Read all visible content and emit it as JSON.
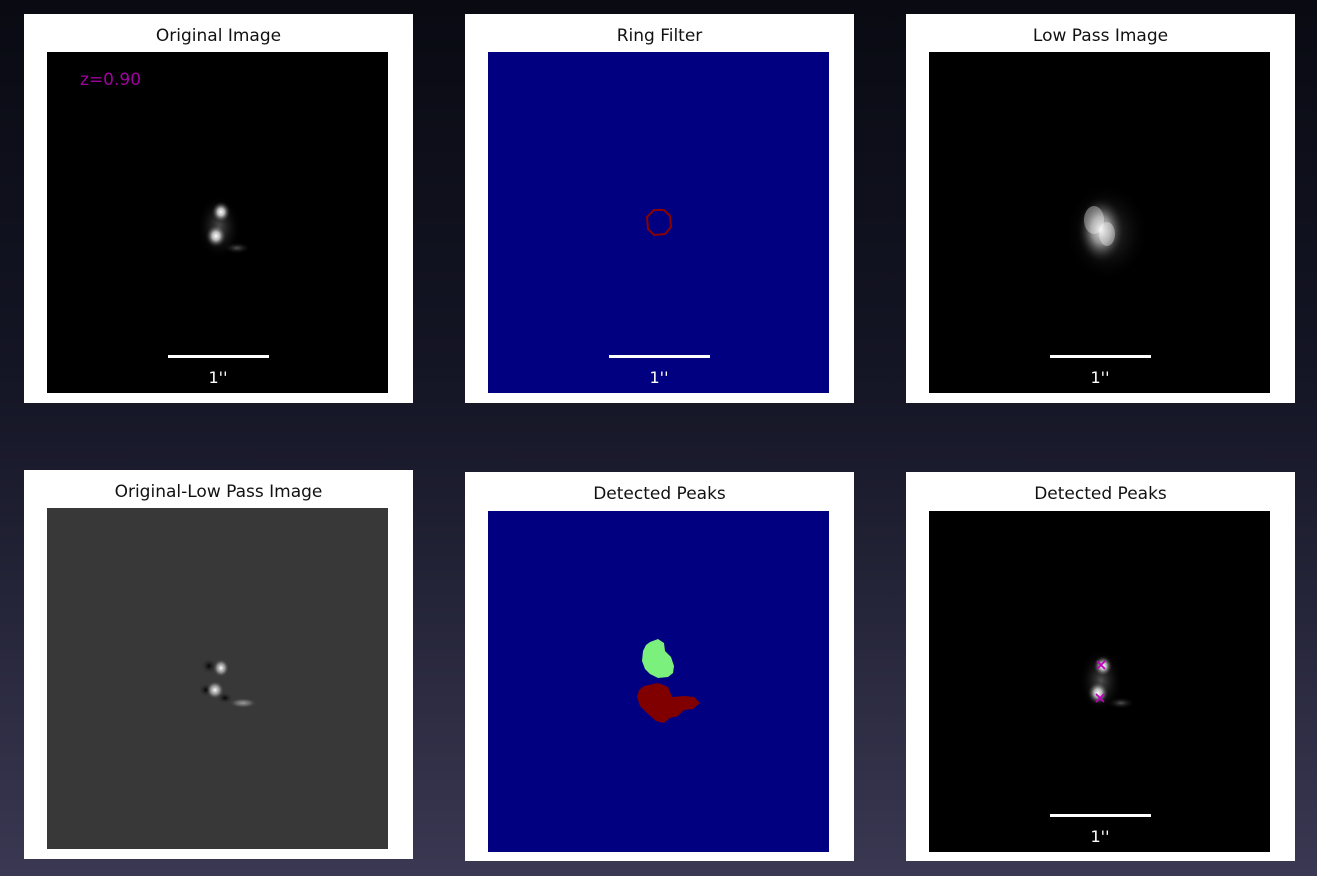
{
  "colors": {
    "background_top": "#090a12",
    "background_bottom": "#3a3852",
    "ring_filter_field": "#000080",
    "ring_color": "#8b0000",
    "peak_green": "#7cf07c",
    "peak_darkred": "#800000",
    "marker_magenta": "#c000c0",
    "redshift_label": "#a000a0"
  },
  "panels": [
    {
      "id": "original",
      "title": "Original Image",
      "overlay": "z=0.90",
      "scalebar_label": "1''",
      "colormap": "gray"
    },
    {
      "id": "ring-filter",
      "title": "Ring Filter",
      "scalebar_label": "1''",
      "colormap": "jet"
    },
    {
      "id": "low-pass",
      "title": "Low Pass Image",
      "scalebar_label": "1''",
      "colormap": "gray"
    },
    {
      "id": "residual",
      "title": "Original-Low Pass Image",
      "colormap": "gray"
    },
    {
      "id": "peak-segments",
      "title": "Detected Peaks",
      "colormap": "jet"
    },
    {
      "id": "peak-markers",
      "title": "Detected Peaks",
      "scalebar_label": "1''",
      "colormap": "gray",
      "markers": [
        "x-marker",
        "x-marker"
      ]
    }
  ]
}
